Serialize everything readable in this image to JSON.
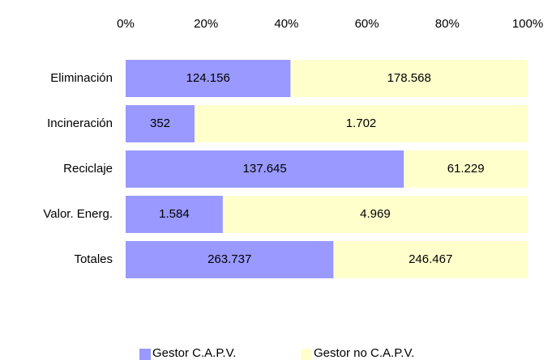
{
  "chart_data": {
    "type": "bar",
    "orientation": "horizontal",
    "stacked": "percent",
    "categories": [
      "Eliminación",
      "Incineración",
      "Reciclaje",
      "Valor. Energ.",
      "Totales"
    ],
    "series": [
      {
        "name": "Gestor C.A.P.V.",
        "color": "#9999ff",
        "values": [
          124156,
          352,
          137645,
          1584,
          263737
        ],
        "value_labels": [
          "124.156",
          "352",
          "137.645",
          "1.584",
          "263.737"
        ]
      },
      {
        "name": "Gestor no C.A.P.V.",
        "color": "#ffffcc",
        "values": [
          178568,
          1702,
          61229,
          4969,
          246467
        ],
        "value_labels": [
          "178.568",
          "1.702",
          "61.229",
          "4.969",
          "246.467"
        ]
      }
    ],
    "xlim": [
      0,
      100
    ],
    "xticks": [
      {
        "value": 0,
        "label": "0%"
      },
      {
        "value": 20,
        "label": "20%"
      },
      {
        "value": 40,
        "label": "40%"
      },
      {
        "value": 60,
        "label": "60%"
      },
      {
        "value": 80,
        "label": "80%"
      },
      {
        "value": 100,
        "label": "100%"
      }
    ],
    "legend": "bottom"
  }
}
